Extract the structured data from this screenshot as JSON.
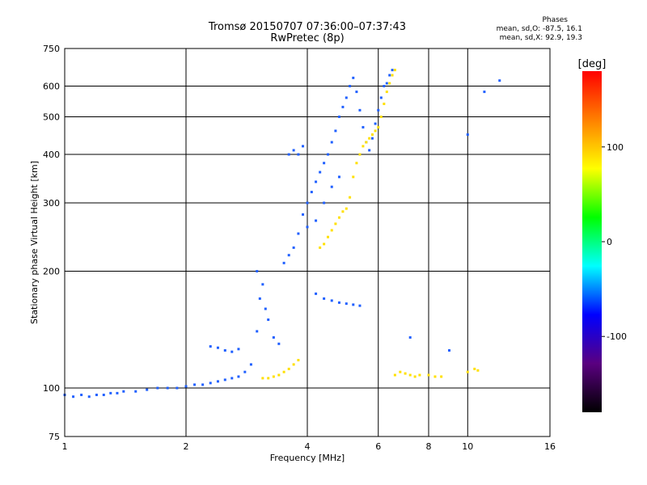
{
  "header": {
    "title": "Tromsø 20150707 07:36:00–07:37:43",
    "subtitle": "RwPretec (8p)"
  },
  "phases": {
    "heading": "Phases",
    "line_o": "mean, sd,O: -87.5, 16.1",
    "line_x": "mean, sd,X:  92.9, 19.3"
  },
  "colorbar": {
    "unit_label": "[deg]",
    "ticks": [
      {
        "label": "100",
        "value": 100
      },
      {
        "label": "0",
        "value": 0
      },
      {
        "label": "-100",
        "value": -100
      }
    ],
    "range": [
      -180,
      180
    ],
    "colors": [
      "#000000",
      "#5a0080",
      "#0000ff",
      "#00ffff",
      "#00ff00",
      "#ffff00",
      "#ff8000",
      "#ff0000"
    ]
  },
  "chart_data": {
    "type": "scatter",
    "title": "Tromsø 20150707 07:36:00–07:37:43",
    "subtitle": "RwPretec (8p)",
    "xlabel": "Frequency [MHz]",
    "ylabel": "Stationary phase Virtual Height [km]",
    "xscale": "log",
    "yscale": "log",
    "xlim": [
      1,
      16
    ],
    "ylim": [
      75,
      750
    ],
    "xticks": [
      1,
      2,
      4,
      6,
      8,
      10,
      16
    ],
    "xtick_labels": [
      "1",
      "2",
      "4",
      "6",
      "8",
      "10",
      "16"
    ],
    "yticks": [
      75,
      100,
      200,
      300,
      400,
      500,
      600,
      750
    ],
    "ytick_labels": [
      "75",
      "100",
      "200",
      "300",
      "400",
      "500",
      "600",
      "750"
    ],
    "grid": true,
    "color_by": "phase (deg)",
    "series": [
      {
        "trace": "O",
        "color": "#2060ff",
        "points": [
          [
            1.0,
            96
          ],
          [
            1.05,
            95
          ],
          [
            1.1,
            96
          ],
          [
            1.15,
            95
          ],
          [
            1.2,
            96
          ],
          [
            1.25,
            96
          ],
          [
            1.3,
            97
          ],
          [
            1.35,
            97
          ],
          [
            1.4,
            98
          ],
          [
            1.5,
            98
          ],
          [
            1.6,
            99
          ],
          [
            1.7,
            100
          ],
          [
            1.8,
            100
          ],
          [
            1.9,
            100
          ],
          [
            2.0,
            101
          ],
          [
            2.1,
            102
          ],
          [
            2.2,
            102
          ],
          [
            2.3,
            103
          ],
          [
            2.4,
            104
          ],
          [
            2.5,
            105
          ],
          [
            2.6,
            106
          ],
          [
            2.7,
            107
          ],
          [
            2.8,
            110
          ],
          [
            2.9,
            115
          ],
          [
            2.3,
            128
          ],
          [
            2.4,
            127
          ],
          [
            2.5,
            125
          ],
          [
            2.6,
            124
          ],
          [
            2.7,
            126
          ],
          [
            3.0,
            140
          ],
          [
            3.05,
            170
          ],
          [
            3.1,
            185
          ],
          [
            3.15,
            160
          ],
          [
            3.2,
            150
          ],
          [
            3.3,
            135
          ],
          [
            3.4,
            130
          ],
          [
            3.0,
            200
          ],
          [
            3.5,
            210
          ],
          [
            3.6,
            220
          ],
          [
            3.7,
            230
          ],
          [
            3.8,
            250
          ],
          [
            3.9,
            280
          ],
          [
            4.0,
            300
          ],
          [
            4.1,
            320
          ],
          [
            4.2,
            340
          ],
          [
            4.3,
            360
          ],
          [
            4.4,
            380
          ],
          [
            4.5,
            400
          ],
          [
            4.6,
            430
          ],
          [
            4.7,
            460
          ],
          [
            4.8,
            500
          ],
          [
            4.9,
            530
          ],
          [
            5.0,
            560
          ],
          [
            5.1,
            600
          ],
          [
            5.2,
            630
          ],
          [
            5.3,
            580
          ],
          [
            5.4,
            520
          ],
          [
            5.5,
            470
          ],
          [
            5.6,
            430
          ],
          [
            5.7,
            410
          ],
          [
            5.8,
            440
          ],
          [
            5.9,
            480
          ],
          [
            6.0,
            520
          ],
          [
            6.1,
            560
          ],
          [
            3.8,
            400
          ],
          [
            3.9,
            420
          ],
          [
            4.0,
            260
          ],
          [
            4.2,
            270
          ],
          [
            4.4,
            300
          ],
          [
            4.6,
            330
          ],
          [
            4.8,
            350
          ],
          [
            4.2,
            175
          ],
          [
            4.4,
            170
          ],
          [
            4.6,
            168
          ],
          [
            4.8,
            166
          ],
          [
            5.0,
            165
          ],
          [
            5.2,
            164
          ],
          [
            5.4,
            163
          ],
          [
            6.2,
            600
          ],
          [
            6.3,
            610
          ],
          [
            6.4,
            640
          ],
          [
            6.5,
            660
          ],
          [
            3.6,
            400
          ],
          [
            3.7,
            410
          ],
          [
            7.2,
            135
          ],
          [
            9.0,
            125
          ],
          [
            10.0,
            450
          ],
          [
            11.0,
            580
          ],
          [
            12.0,
            620
          ]
        ]
      },
      {
        "trace": "X",
        "color": "#ffe000",
        "points": [
          [
            3.1,
            106
          ],
          [
            3.2,
            106
          ],
          [
            3.3,
            107
          ],
          [
            3.4,
            108
          ],
          [
            3.5,
            110
          ],
          [
            3.6,
            112
          ],
          [
            3.7,
            115
          ],
          [
            3.8,
            118
          ],
          [
            4.3,
            230
          ],
          [
            4.4,
            235
          ],
          [
            4.5,
            245
          ],
          [
            4.6,
            255
          ],
          [
            4.7,
            265
          ],
          [
            4.8,
            275
          ],
          [
            4.9,
            285
          ],
          [
            5.0,
            290
          ],
          [
            5.1,
            310
          ],
          [
            5.2,
            350
          ],
          [
            5.3,
            380
          ],
          [
            5.4,
            400
          ],
          [
            5.5,
            420
          ],
          [
            5.6,
            430
          ],
          [
            5.7,
            440
          ],
          [
            5.8,
            450
          ],
          [
            5.9,
            460
          ],
          [
            6.0,
            470
          ],
          [
            6.1,
            500
          ],
          [
            6.2,
            540
          ],
          [
            6.3,
            580
          ],
          [
            6.4,
            610
          ],
          [
            6.5,
            640
          ],
          [
            6.6,
            660
          ],
          [
            6.6,
            108
          ],
          [
            6.8,
            110
          ],
          [
            7.0,
            109
          ],
          [
            7.2,
            108
          ],
          [
            7.4,
            107
          ],
          [
            7.6,
            108
          ],
          [
            8.0,
            108
          ],
          [
            8.3,
            107
          ],
          [
            8.6,
            107
          ],
          [
            10.0,
            110
          ],
          [
            10.4,
            112
          ],
          [
            10.6,
            111
          ]
        ]
      }
    ]
  }
}
